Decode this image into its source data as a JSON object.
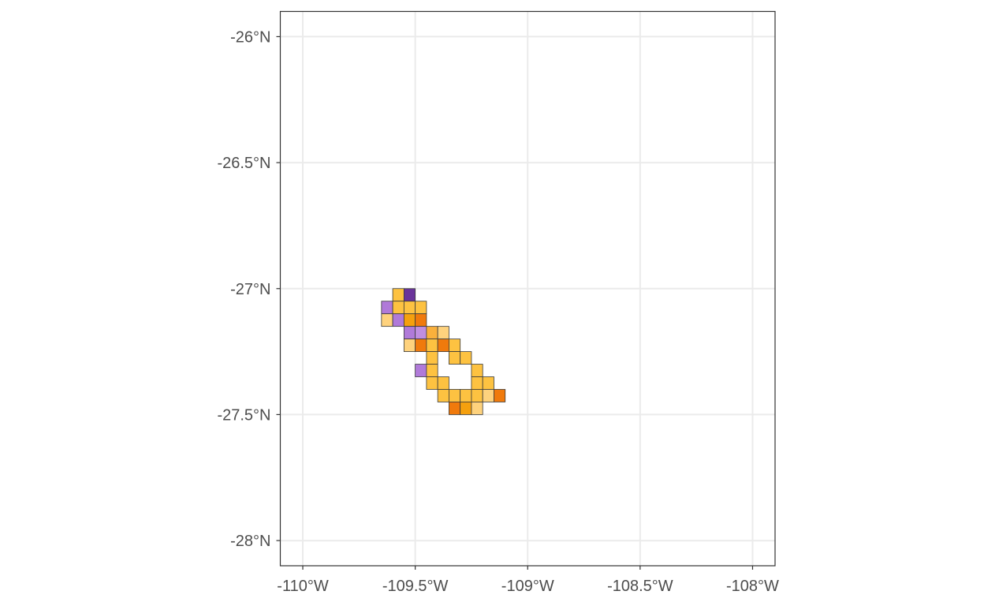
{
  "chart_data": {
    "type": "heatmap",
    "title": "",
    "xlabel": "",
    "ylabel": "",
    "xlim": [
      -110.1,
      -107.9
    ],
    "ylim": [
      -28.1,
      -25.9
    ],
    "grid": true,
    "x_ticks": [
      {
        "value": -110.0,
        "label": "-110°W"
      },
      {
        "value": -109.5,
        "label": "-109.5°W"
      },
      {
        "value": -109.0,
        "label": "-109°W"
      },
      {
        "value": -108.5,
        "label": "-108.5°W"
      },
      {
        "value": -108.0,
        "label": "-108°W"
      }
    ],
    "y_ticks": [
      {
        "value": -26.0,
        "label": "-26°N"
      },
      {
        "value": -26.5,
        "label": "-26.5°N"
      },
      {
        "value": -27.0,
        "label": "-27°N"
      },
      {
        "value": -27.5,
        "label": "-27.5°N"
      },
      {
        "value": -28.0,
        "label": "-28°N"
      }
    ],
    "cell_size_deg": 0.05,
    "cells": [
      {
        "lon": -109.575,
        "lat": -27.025,
        "color": "#fdc241"
      },
      {
        "lon": -109.525,
        "lat": -27.025,
        "color": "#6a339a"
      },
      {
        "lon": -109.625,
        "lat": -27.075,
        "color": "#b07ad9"
      },
      {
        "lon": -109.575,
        "lat": -27.075,
        "color": "#fdc241"
      },
      {
        "lon": -109.525,
        "lat": -27.075,
        "color": "#fdc241"
      },
      {
        "lon": -109.475,
        "lat": -27.075,
        "color": "#fdc241"
      },
      {
        "lon": -109.625,
        "lat": -27.125,
        "color": "#fed27d"
      },
      {
        "lon": -109.575,
        "lat": -27.125,
        "color": "#b07ad9"
      },
      {
        "lon": -109.525,
        "lat": -27.125,
        "color": "#f5a00e"
      },
      {
        "lon": -109.475,
        "lat": -27.125,
        "color": "#f07a0c"
      },
      {
        "lon": -109.525,
        "lat": -27.175,
        "color": "#b07ad9"
      },
      {
        "lon": -109.475,
        "lat": -27.175,
        "color": "#c08ee0"
      },
      {
        "lon": -109.425,
        "lat": -27.175,
        "color": "#f9b03c"
      },
      {
        "lon": -109.375,
        "lat": -27.175,
        "color": "#fed27d"
      },
      {
        "lon": -109.525,
        "lat": -27.225,
        "color": "#fed27d"
      },
      {
        "lon": -109.475,
        "lat": -27.225,
        "color": "#f07a0c"
      },
      {
        "lon": -109.425,
        "lat": -27.225,
        "color": "#fdc241"
      },
      {
        "lon": -109.375,
        "lat": -27.225,
        "color": "#f07a0c"
      },
      {
        "lon": -109.325,
        "lat": -27.225,
        "color": "#fdc241"
      },
      {
        "lon": -109.425,
        "lat": -27.275,
        "color": "#fdc241"
      },
      {
        "lon": -109.325,
        "lat": -27.275,
        "color": "#fdc241"
      },
      {
        "lon": -109.275,
        "lat": -27.275,
        "color": "#fdc241"
      },
      {
        "lon": -109.475,
        "lat": -27.325,
        "color": "#b07ad9"
      },
      {
        "lon": -109.425,
        "lat": -27.325,
        "color": "#fdc241"
      },
      {
        "lon": -109.225,
        "lat": -27.325,
        "color": "#fdc241"
      },
      {
        "lon": -109.425,
        "lat": -27.375,
        "color": "#fdc241"
      },
      {
        "lon": -109.375,
        "lat": -27.375,
        "color": "#fdc241"
      },
      {
        "lon": -109.225,
        "lat": -27.375,
        "color": "#fdc241"
      },
      {
        "lon": -109.175,
        "lat": -27.375,
        "color": "#fdc241"
      },
      {
        "lon": -109.375,
        "lat": -27.425,
        "color": "#fdc241"
      },
      {
        "lon": -109.325,
        "lat": -27.425,
        "color": "#fdc241"
      },
      {
        "lon": -109.275,
        "lat": -27.425,
        "color": "#fdc241"
      },
      {
        "lon": -109.225,
        "lat": -27.425,
        "color": "#fdc241"
      },
      {
        "lon": -109.175,
        "lat": -27.425,
        "color": "#fed27d"
      },
      {
        "lon": -109.125,
        "lat": -27.425,
        "color": "#f07a0c"
      },
      {
        "lon": -109.325,
        "lat": -27.475,
        "color": "#f07a0c"
      },
      {
        "lon": -109.275,
        "lat": -27.475,
        "color": "#f5a00e"
      },
      {
        "lon": -109.225,
        "lat": -27.475,
        "color": "#fed27d"
      }
    ]
  }
}
